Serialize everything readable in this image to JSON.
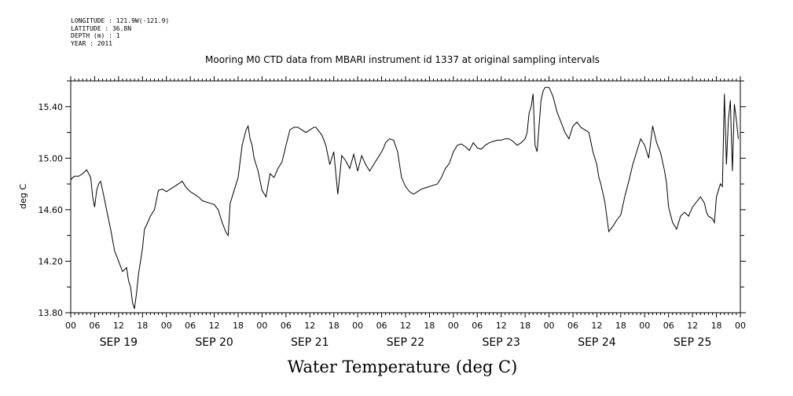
{
  "meta": {
    "longitude": "LONGITUDE : 121.9W(-121.9)",
    "latitude": "LATITUDE : 36.8N",
    "depth": "DEPTH (m) : 1",
    "year": "YEAR : 2011"
  },
  "chart_data": {
    "type": "line",
    "title": "Mooring M0 CTD data from MBARI instrument id 1337 at original sampling intervals",
    "xlabel": "Water Temperature (deg C)",
    "ylabel": "deg C",
    "ylim": [
      13.8,
      15.6
    ],
    "yticks": [
      "13.80",
      "14.20",
      "14.60",
      "15.00",
      "15.40"
    ],
    "hour_ticks": [
      "00",
      "06",
      "12",
      "18",
      "00",
      "06",
      "12",
      "18",
      "00",
      "06",
      "12",
      "18",
      "00",
      "06",
      "12",
      "18",
      "00",
      "06",
      "12",
      "18",
      "00",
      "06",
      "12",
      "18",
      "00",
      "06",
      "12",
      "18",
      "00"
    ],
    "day_labels": [
      "SEP 19",
      "SEP 20",
      "SEP 21",
      "SEP 22",
      "SEP 23",
      "SEP 24",
      "SEP 25"
    ],
    "x_unit": "hours since 2011-09-19 00:00",
    "series": [
      {
        "name": "",
        "x": [
          0,
          0.5,
          1,
          2,
          3,
          4,
          5,
          5.5,
          6,
          6.5,
          7,
          7.5,
          8,
          9,
          10,
          11,
          12,
          13,
          14,
          14.5,
          15,
          15.5,
          16,
          16.5,
          17,
          17.5,
          18,
          18.5,
          19,
          20,
          21,
          22,
          23,
          24,
          25,
          26,
          27,
          28,
          29,
          30,
          31,
          32,
          33,
          34,
          35,
          36,
          37,
          38,
          39,
          39.5,
          40,
          41,
          42,
          43,
          44,
          44.5,
          45,
          45.5,
          46,
          47,
          48,
          49,
          50,
          51,
          52,
          53,
          54,
          55,
          56,
          57,
          58,
          59,
          60,
          61,
          61.5,
          62,
          63,
          64,
          65,
          66,
          67,
          68,
          69,
          70,
          71,
          72,
          73,
          74,
          75,
          76,
          77,
          78,
          78.5,
          79,
          80,
          81,
          82,
          83,
          84,
          85,
          86,
          87,
          88,
          89,
          90,
          91,
          92,
          93,
          94,
          95,
          96,
          97,
          98,
          99,
          100,
          101,
          102,
          103,
          104,
          105,
          106,
          107,
          108,
          109,
          110,
          111,
          112,
          113,
          114,
          114.5,
          115,
          115.5,
          116,
          116.5,
          117,
          118,
          118.5,
          119,
          120,
          121,
          122,
          123,
          124,
          125,
          126,
          127,
          128,
          129,
          130,
          131,
          132,
          132.5,
          133,
          134,
          135,
          136,
          137,
          138,
          139,
          140,
          141,
          142,
          143,
          144,
          145,
          146,
          147,
          148,
          149,
          149.5,
          150,
          151,
          152,
          153,
          154,
          155,
          156,
          157,
          158,
          159,
          159.5,
          160,
          161,
          161.5,
          162,
          162.5,
          163,
          163.5,
          164,
          164.5,
          165,
          165.5,
          166,
          166.5,
          167,
          167.5
        ],
        "y": [
          14.83,
          14.85,
          14.86,
          14.86,
          14.88,
          14.91,
          14.85,
          14.7,
          14.62,
          14.75,
          14.8,
          14.82,
          14.75,
          14.6,
          14.45,
          14.28,
          14.2,
          14.12,
          14.15,
          14.05,
          14.0,
          13.88,
          13.83,
          13.95,
          14.1,
          14.2,
          14.3,
          14.45,
          14.48,
          14.55,
          14.6,
          14.75,
          14.76,
          14.74,
          14.76,
          14.78,
          14.8,
          14.82,
          14.77,
          14.74,
          14.72,
          14.7,
          14.67,
          14.66,
          14.65,
          14.64,
          14.6,
          14.5,
          14.42,
          14.4,
          14.65,
          14.75,
          14.85,
          15.1,
          15.22,
          15.25,
          15.15,
          15.1,
          15.0,
          14.9,
          14.75,
          14.7,
          14.88,
          14.85,
          14.92,
          14.97,
          15.1,
          15.22,
          15.24,
          15.24,
          15.22,
          15.2,
          15.22,
          15.24,
          15.24,
          15.22,
          15.18,
          15.1,
          14.95,
          15.05,
          14.72,
          15.02,
          14.98,
          14.92,
          15.03,
          14.9,
          15.02,
          14.95,
          14.9,
          14.95,
          15.0,
          15.05,
          15.08,
          15.12,
          15.15,
          15.14,
          15.05,
          14.85,
          14.78,
          14.74,
          14.72,
          14.74,
          14.76,
          14.77,
          14.78,
          14.79,
          14.8,
          14.85,
          14.92,
          14.96,
          15.05,
          15.1,
          15.11,
          15.09,
          15.06,
          15.12,
          15.08,
          15.07,
          15.1,
          15.12,
          15.13,
          15.14,
          15.14,
          15.15,
          15.15,
          15.13,
          15.1,
          15.12,
          15.15,
          15.2,
          15.35,
          15.4,
          15.5,
          15.1,
          15.05,
          15.45,
          15.52,
          15.55,
          15.55,
          15.48,
          15.36,
          15.28,
          15.2,
          15.15,
          15.25,
          15.28,
          15.24,
          15.22,
          15.2,
          15.05,
          14.95,
          14.85,
          14.8,
          14.66,
          14.43,
          14.47,
          14.52,
          14.56,
          14.7,
          14.82,
          14.95,
          15.05,
          15.15,
          15.1,
          15.0,
          15.25,
          15.12,
          15.04,
          14.9,
          14.8,
          14.62,
          14.5,
          14.45,
          14.55,
          14.58,
          14.55,
          14.62,
          14.66,
          14.7,
          14.65,
          14.58,
          14.55,
          14.53,
          14.5,
          14.7,
          14.75,
          14.8,
          14.78,
          15.5,
          14.95,
          15.3,
          15.45,
          14.9,
          15.42,
          15.3,
          15.15
        ]
      }
    ]
  }
}
